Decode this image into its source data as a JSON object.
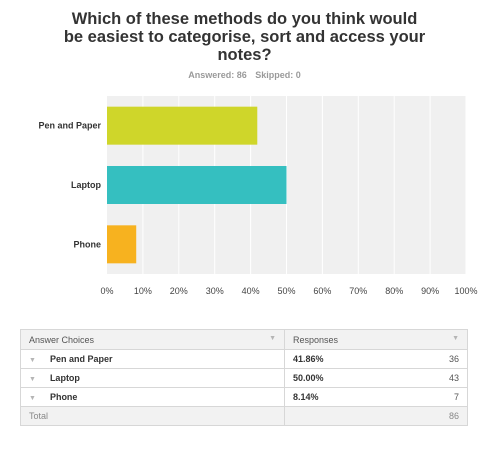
{
  "question": "Which of these methods do you think would be easiest to categorise, sort and access your notes?",
  "summary": {
    "answered": "Answered: 86",
    "skipped": "Skipped: 0"
  },
  "colors": {
    "pen": "#cfd62a",
    "laptop": "#35bfc0",
    "phone": "#f7b21f",
    "plot_bg": "#f0f0f0",
    "grid": "#ffffff"
  },
  "chart_data": {
    "type": "bar",
    "orientation": "horizontal",
    "categories": [
      "Pen and Paper",
      "Laptop",
      "Phone"
    ],
    "values": [
      41.86,
      50.0,
      8.14
    ],
    "xlim": [
      0,
      100
    ],
    "ticks": [
      "0%",
      "10%",
      "20%",
      "30%",
      "40%",
      "50%",
      "60%",
      "70%",
      "80%",
      "90%",
      "100%"
    ],
    "grid": true
  },
  "table": {
    "headers": {
      "choices": "Answer Choices",
      "responses": "Responses"
    },
    "rows": [
      {
        "choice": "Pen and Paper",
        "percent": "41.86%",
        "count": "36"
      },
      {
        "choice": "Laptop",
        "percent": "50.00%",
        "count": "43"
      },
      {
        "choice": "Phone",
        "percent": "8.14%",
        "count": "7"
      }
    ],
    "total": {
      "label": "Total",
      "count": "86"
    }
  }
}
